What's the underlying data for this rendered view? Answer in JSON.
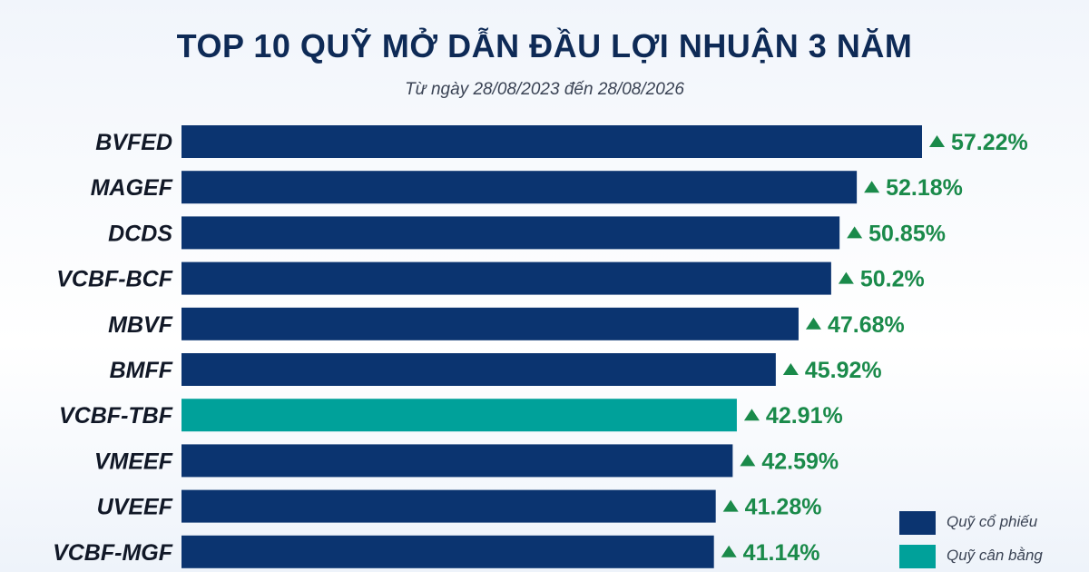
{
  "title": "TOP 10 QUỸ MỞ DẪN ĐẦU LỢI NHUẬN 3 NĂM",
  "subtitle": "Từ ngày 28/08/2023 đến 28/08/2026",
  "colors": {
    "equity": "#0b3470",
    "balanced": "#00a19a",
    "positive": "#1a8a4a",
    "title": "#0e2a56"
  },
  "legend": {
    "equity_label": "Quỹ cổ phiếu",
    "balanced_label": "Quỹ cân bằng"
  },
  "chart_data": {
    "type": "bar",
    "orientation": "horizontal",
    "title": "TOP 10 QUỸ MỞ DẪN ĐẦU LỢI NHUẬN 3 NĂM",
    "subtitle": "Từ ngày 28/08/2023 đến 28/08/2026",
    "categories": [
      "BVFED",
      "MAGEF",
      "DCDS",
      "VCBF-BCF",
      "MBVF",
      "BMFF",
      "VCBF-TBF",
      "VMEEF",
      "UVEEF",
      "VCBF-MGF"
    ],
    "values": [
      57.22,
      52.18,
      50.85,
      50.2,
      47.68,
      45.92,
      42.91,
      42.59,
      41.28,
      41.14
    ],
    "value_labels": [
      "57.22%",
      "52.18%",
      "50.85%",
      "50.2%",
      "47.68%",
      "45.92%",
      "42.91%",
      "42.59%",
      "41.28%",
      "41.14%"
    ],
    "fund_type": [
      "equity",
      "equity",
      "equity",
      "equity",
      "equity",
      "equity",
      "balanced",
      "equity",
      "equity",
      "equity"
    ],
    "xlim": [
      0,
      57.22
    ],
    "legend_position": "bottom-right",
    "grid": false
  }
}
